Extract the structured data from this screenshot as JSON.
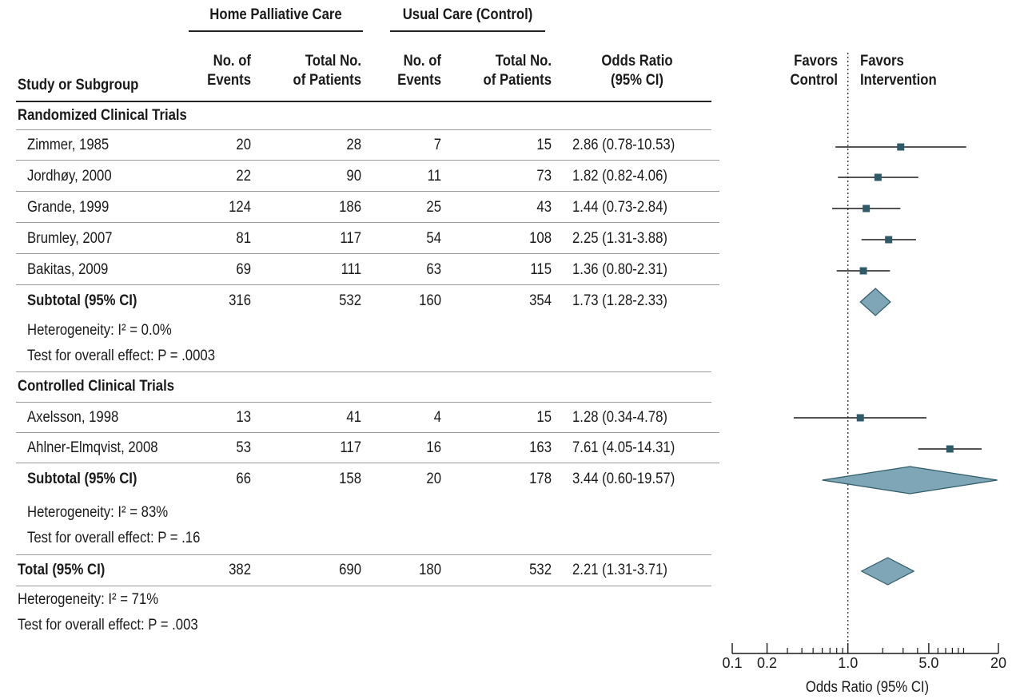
{
  "header": {
    "group_home": "Home Palliative Care",
    "group_usual": "Usual Care (Control)",
    "col_study": "Study or Subgroup",
    "col_events_1": "No. of",
    "col_events_2": "Events",
    "col_total_1": "Total No.",
    "col_total_2": "of Patients",
    "col_or_1": "Odds Ratio",
    "col_or_2": "(95% CI)",
    "favors_control_1": "Favors",
    "favors_control_2": "Control",
    "favors_int_1": "Favors",
    "favors_int_2": "Intervention"
  },
  "sections": {
    "rct_title": "Randomized Clinical Trials",
    "rct_het_label": "Heterogeneity: ",
    "rct_het_value": "I² = 0.0%",
    "rct_test_label": "Test for overall effect: ",
    "rct_test_value": "P = .0003",
    "cct_title": "Controlled Clinical Trials",
    "cct_het_label": "Heterogeneity: ",
    "cct_het_value": "I² = 83%",
    "cct_test_label": "Test for overall effect: ",
    "cct_test_value": "P = .16",
    "total_het_label": "Heterogeneity: ",
    "total_het_value": "I² = 71%",
    "total_test_label": "Test for overall effect: ",
    "total_test_value": "P = .003"
  },
  "rows": [
    {
      "study": "Zimmer, 1985",
      "ev1": "20",
      "tot1": "28",
      "ev2": "7",
      "tot2": "15",
      "or": "2.86 (0.78-10.53)"
    },
    {
      "study": "Jordhøy, 2000",
      "ev1": "22",
      "tot1": "90",
      "ev2": "11",
      "tot2": "73",
      "or": "1.82 (0.82-4.06)"
    },
    {
      "study": "Grande, 1999",
      "ev1": "124",
      "tot1": "186",
      "ev2": "25",
      "tot2": "43",
      "or": "1.44 (0.73-2.84)"
    },
    {
      "study": "Brumley, 2007",
      "ev1": "81",
      "tot1": "117",
      "ev2": "54",
      "tot2": "108",
      "or": "2.25 (1.31-3.88)"
    },
    {
      "study": "Bakitas, 2009",
      "ev1": "69",
      "tot1": "111",
      "ev2": "63",
      "tot2": "115",
      "or": "1.36 (0.80-2.31)"
    },
    {
      "study": "Subtotal  (95% CI)",
      "ev1": "316",
      "tot1": "532",
      "ev2": "160",
      "tot2": "354",
      "or": "1.73 (1.28-2.33)"
    },
    {
      "study": "Axelsson, 1998",
      "ev1": "13",
      "tot1": "41",
      "ev2": "4",
      "tot2": "15",
      "or": "1.28 (0.34-4.78)"
    },
    {
      "study": "Ahlner-Elmqvist, 2008",
      "ev1": "53",
      "tot1": "117",
      "ev2": "16",
      "tot2": "163",
      "or": "7.61 (4.05-14.31)"
    },
    {
      "study": "Subtotal  (95% CI)",
      "ev1": "66",
      "tot1": "158",
      "ev2": "20",
      "tot2": "178",
      "or": "3.44 (0.60-19.57)"
    },
    {
      "study": "Total (95% CI)",
      "ev1": "382",
      "tot1": "690",
      "ev2": "180",
      "tot2": "532",
      "or": "2.21 (1.31-3.71)"
    }
  ],
  "colors": {
    "point": "#2f5b68",
    "diamond_fill": "#7fa6b6",
    "diamond_stroke": "#2f5b68",
    "line": "#1a1a1a"
  },
  "chart_data": {
    "type": "forest",
    "scale": "log",
    "xlim": [
      0.1,
      20
    ],
    "xlabel": "Odds Ratio (95% CI)",
    "xticks": [
      0.1,
      0.2,
      1.0,
      5.0,
      20
    ],
    "xtick_labels": [
      "0.1",
      "0.2",
      "1.0",
      "5.0",
      "20"
    ],
    "reference_line": 1.0,
    "studies": [
      {
        "name": "Zimmer, 1985",
        "or": 2.86,
        "lo": 0.78,
        "hi": 10.53,
        "kind": "study"
      },
      {
        "name": "Jordhøy, 2000",
        "or": 1.82,
        "lo": 0.82,
        "hi": 4.06,
        "kind": "study"
      },
      {
        "name": "Grande, 1999",
        "or": 1.44,
        "lo": 0.73,
        "hi": 2.84,
        "kind": "study"
      },
      {
        "name": "Brumley, 2007",
        "or": 2.25,
        "lo": 1.31,
        "hi": 3.88,
        "kind": "study"
      },
      {
        "name": "Bakitas, 2009",
        "or": 1.36,
        "lo": 0.8,
        "hi": 2.31,
        "kind": "study"
      },
      {
        "name": "Subtotal (95% CI)",
        "or": 1.73,
        "lo": 1.28,
        "hi": 2.33,
        "kind": "summary"
      },
      {
        "name": "Axelsson, 1998",
        "or": 1.28,
        "lo": 0.34,
        "hi": 4.78,
        "kind": "study"
      },
      {
        "name": "Ahlner-Elmqvist, 2008",
        "or": 7.61,
        "lo": 4.05,
        "hi": 14.31,
        "kind": "study"
      },
      {
        "name": "Subtotal (95% CI)",
        "or": 3.44,
        "lo": 0.6,
        "hi": 19.57,
        "kind": "summary"
      },
      {
        "name": "Total (95% CI)",
        "or": 2.21,
        "lo": 1.31,
        "hi": 3.71,
        "kind": "summary"
      }
    ]
  }
}
